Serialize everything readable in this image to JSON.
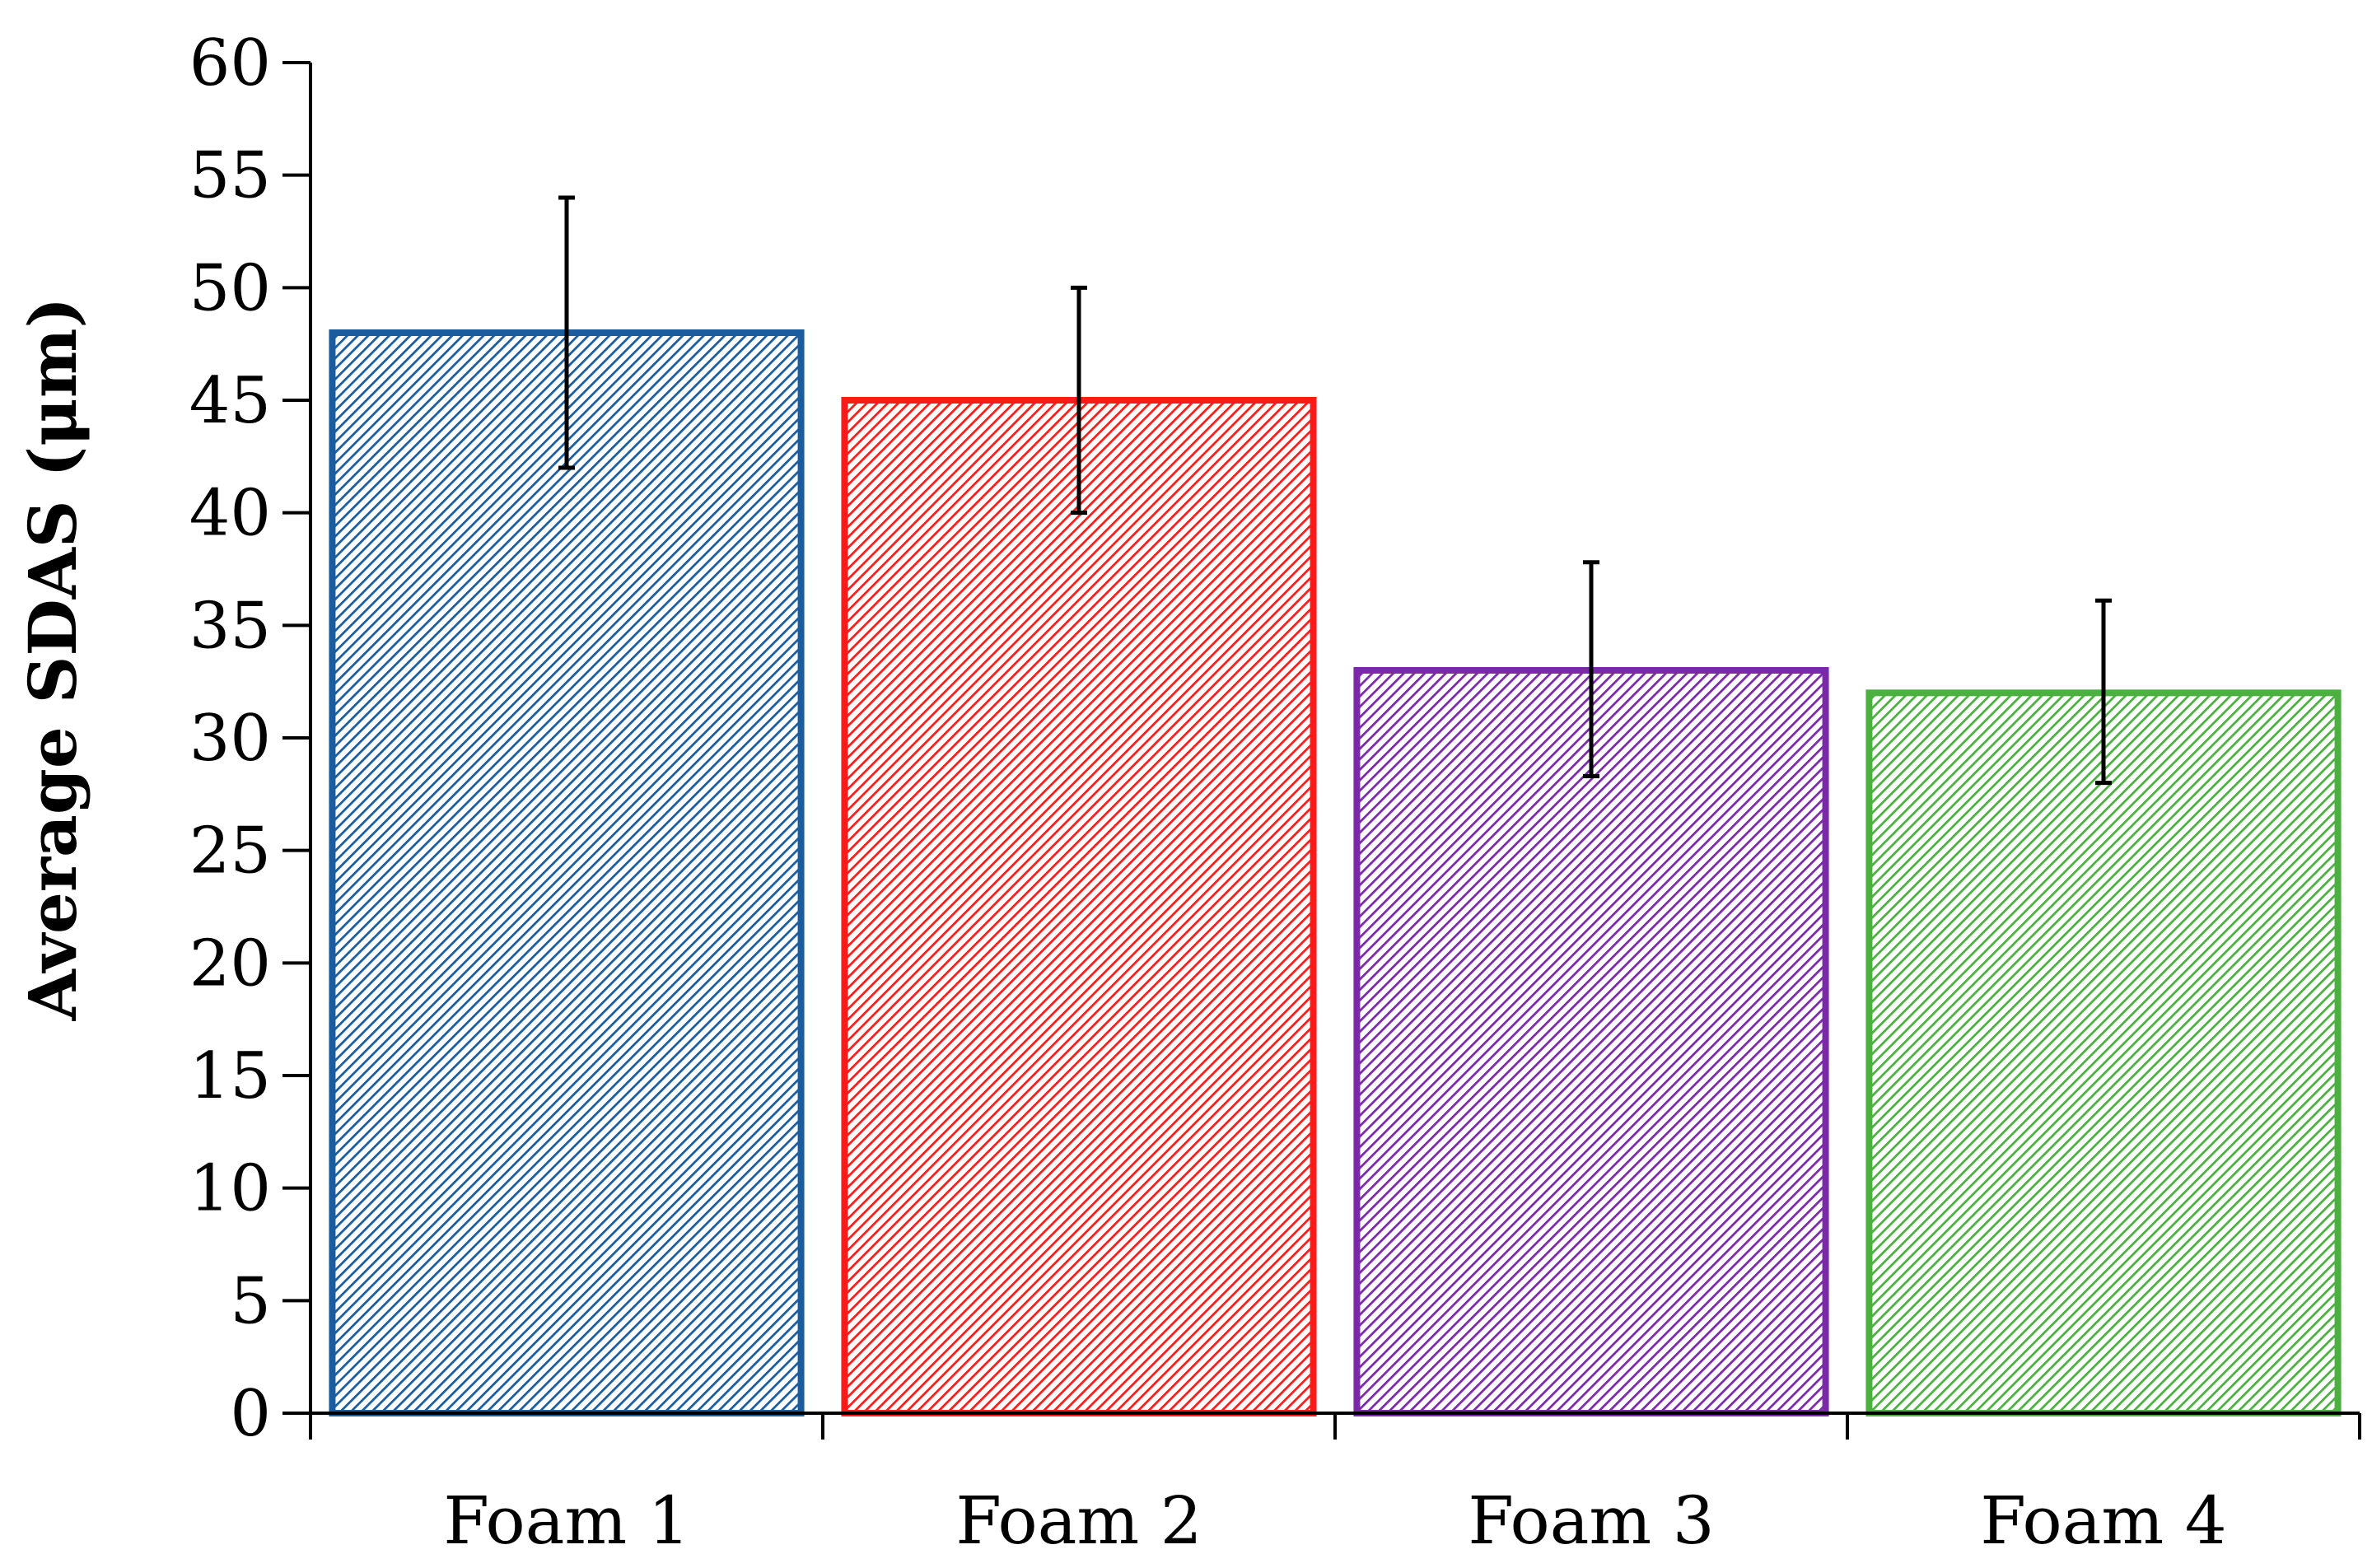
{
  "chart_data": {
    "type": "bar",
    "title": "",
    "xlabel": "",
    "ylabel": "Average SDAS (μm)",
    "ylim": [
      0,
      60
    ],
    "yticks": [
      0,
      5,
      10,
      15,
      20,
      25,
      30,
      35,
      40,
      45,
      50,
      55,
      60
    ],
    "grid": false,
    "legend": "none",
    "categories": [
      "Foam 1",
      "Foam 2",
      "Foam 3",
      "Foam 4"
    ],
    "values": [
      48,
      45,
      33,
      32
    ],
    "error_bars": {
      "lower": [
        42,
        40,
        28.3,
        28
      ],
      "upper": [
        54,
        50,
        37.8,
        36.1
      ]
    },
    "colors": [
      "#1a5c9e",
      "#ff1a1a",
      "#7a2aa8",
      "#4bb040"
    ],
    "fill_pattern": "diagonal-hatch"
  }
}
